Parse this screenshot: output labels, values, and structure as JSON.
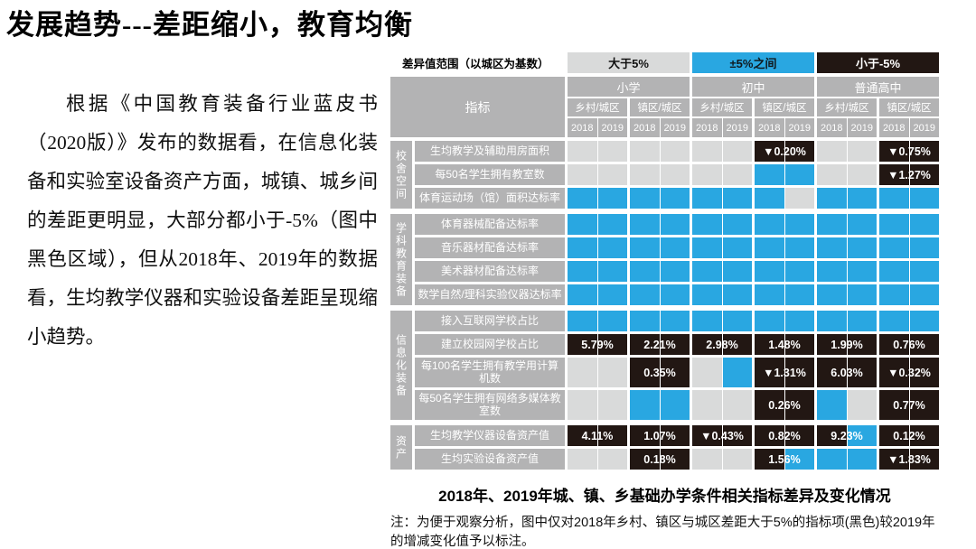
{
  "title": "发展趋势---差距缩小，教育均衡",
  "paragraph": "根据《中国教育装备行业蓝皮书（2020版）》发布的数据看，在信息化装备和实验室设备资产方面，城镇、城乡间的差距更明显，大部分都小于-5%（图中黑色区域），但从2018年、2019年的数据看，生均教学仪器和实验设备差距呈现缩小趋势。",
  "colors": {
    "G": "#d9dada",
    "B": "#29a7e1",
    "K": "#221713",
    "header_gray": "#b3b3b4",
    "label_gray": "#b3b3b4",
    "white": "#ffffff"
  },
  "legend": {
    "label": "差异值范围（以城区为基数）",
    "items": [
      {
        "key": "G",
        "label": "大于5%",
        "color": "#d9dada",
        "text_color": "#111111"
      },
      {
        "key": "B",
        "label": "±5%之间",
        "color": "#29a7e1",
        "text_color": "#10191e"
      },
      {
        "key": "K",
        "label": "小于-5%",
        "color": "#221713",
        "text_color": "#ffffff"
      }
    ]
  },
  "chart_data": {
    "type": "heatmap",
    "title": "2018年、2019年城、镇、乡基础办学条件相关指标差异及变化情况",
    "indicator_header": "指标",
    "levels": [
      "小学",
      "初中",
      "普通高中"
    ],
    "comparisons": [
      "乡村/城区",
      "镇区/城区"
    ],
    "years": [
      "2018",
      "2019"
    ],
    "value_legend": {
      "G": "大于5%",
      "B": "±5%之间",
      "K": "小于-5%"
    },
    "cell_format": "[color2018, color2019, annotation(2018黑色项较2019年增减变化值)]",
    "column_order": [
      "小学 乡村/城区",
      "小学 镇区/城区",
      "初中 乡村/城区",
      "初中 镇区/城区",
      "普通高中 乡村/城区",
      "普通高中 镇区/城区"
    ],
    "groups": [
      {
        "name": "校舍空间",
        "rows": [
          {
            "label": "生均教学及辅助用房面积",
            "tall": false,
            "cells": [
              [
                "G",
                "G",
                ""
              ],
              [
                "G",
                "G",
                ""
              ],
              [
                "G",
                "G",
                ""
              ],
              [
                "K",
                "K",
                "▼0.20%"
              ],
              [
                "G",
                "G",
                ""
              ],
              [
                "K",
                "K",
                "▼0.75%"
              ]
            ]
          },
          {
            "label": "每50名学生拥有教室数",
            "tall": false,
            "cells": [
              [
                "G",
                "G",
                ""
              ],
              [
                "G",
                "G",
                ""
              ],
              [
                "G",
                "G",
                ""
              ],
              [
                "B",
                "B",
                ""
              ],
              [
                "G",
                "G",
                ""
              ],
              [
                "K",
                "K",
                "▼1.27%"
              ]
            ]
          },
          {
            "label": "体育运动场（馆）面积达标率",
            "tall": false,
            "cells": [
              [
                "B",
                "B",
                ""
              ],
              [
                "B",
                "B",
                ""
              ],
              [
                "B",
                "B",
                ""
              ],
              [
                "B",
                "G",
                ""
              ],
              [
                "B",
                "B",
                ""
              ],
              [
                "B",
                "B",
                ""
              ]
            ]
          }
        ]
      },
      {
        "name": "学科教育装备",
        "rows": [
          {
            "label": "体育器械配备达标率",
            "tall": false,
            "cells": [
              [
                "B",
                "B",
                ""
              ],
              [
                "B",
                "B",
                ""
              ],
              [
                "B",
                "B",
                ""
              ],
              [
                "B",
                "B",
                ""
              ],
              [
                "B",
                "B",
                ""
              ],
              [
                "B",
                "B",
                ""
              ]
            ]
          },
          {
            "label": "音乐器材配备达标率",
            "tall": false,
            "cells": [
              [
                "B",
                "B",
                ""
              ],
              [
                "B",
                "B",
                ""
              ],
              [
                "B",
                "B",
                ""
              ],
              [
                "B",
                "B",
                ""
              ],
              [
                "B",
                "B",
                ""
              ],
              [
                "B",
                "B",
                ""
              ]
            ]
          },
          {
            "label": "美术器材配备达标率",
            "tall": false,
            "cells": [
              [
                "B",
                "B",
                ""
              ],
              [
                "B",
                "B",
                ""
              ],
              [
                "B",
                "B",
                ""
              ],
              [
                "B",
                "B",
                ""
              ],
              [
                "B",
                "B",
                ""
              ],
              [
                "B",
                "B",
                ""
              ]
            ]
          },
          {
            "label": "数学自然/理科实验仪器达标率",
            "tall": false,
            "cells": [
              [
                "B",
                "B",
                ""
              ],
              [
                "B",
                "B",
                ""
              ],
              [
                "B",
                "B",
                ""
              ],
              [
                "B",
                "B",
                ""
              ],
              [
                "B",
                "B",
                ""
              ],
              [
                "B",
                "B",
                ""
              ]
            ]
          }
        ]
      },
      {
        "name": "信息化装备",
        "rows": [
          {
            "label": "接入互联网学校占比",
            "tall": false,
            "cells": [
              [
                "B",
                "B",
                ""
              ],
              [
                "B",
                "B",
                ""
              ],
              [
                "B",
                "B",
                ""
              ],
              [
                "B",
                "B",
                ""
              ],
              [
                "B",
                "B",
                ""
              ],
              [
                "B",
                "B",
                ""
              ]
            ]
          },
          {
            "label": "建立校园网学校占比",
            "tall": false,
            "cells": [
              [
                "K",
                "K",
                "5.79%"
              ],
              [
                "K",
                "K",
                "2.21%"
              ],
              [
                "K",
                "K",
                "2.98%"
              ],
              [
                "K",
                "K",
                "1.48%"
              ],
              [
                "K",
                "K",
                "1.99%"
              ],
              [
                "K",
                "K",
                "0.76%"
              ]
            ]
          },
          {
            "label": "每100名学生拥有教学用计算机数",
            "tall": true,
            "cells": [
              [
                "G",
                "G",
                ""
              ],
              [
                "K",
                "K",
                "0.35%"
              ],
              [
                "G",
                "B",
                ""
              ],
              [
                "K",
                "K",
                "▼1.31%"
              ],
              [
                "K",
                "K",
                "6.03%"
              ],
              [
                "K",
                "K",
                "▼0.32%"
              ]
            ]
          },
          {
            "label": "每50名学生拥有网络多媒体教室数",
            "tall": true,
            "cells": [
              [
                "G",
                "G",
                ""
              ],
              [
                "B",
                "B",
                ""
              ],
              [
                "G",
                "G",
                ""
              ],
              [
                "K",
                "K",
                "0.26%"
              ],
              [
                "B",
                "G",
                ""
              ],
              [
                "K",
                "K",
                "0.77%"
              ]
            ]
          }
        ]
      },
      {
        "name": "资产",
        "rows": [
          {
            "label": "生均教学仪器设备资产值",
            "tall": false,
            "cells": [
              [
                "K",
                "K",
                "4.11%"
              ],
              [
                "K",
                "K",
                "1.07%"
              ],
              [
                "K",
                "K",
                "▼0.43%"
              ],
              [
                "K",
                "K",
                "0.82%"
              ],
              [
                "K",
                "B",
                "9.23%"
              ],
              [
                "K",
                "K",
                "0.12%"
              ]
            ]
          },
          {
            "label": "生均实验设备资产值",
            "tall": false,
            "cells": [
              [
                "G",
                "G",
                ""
              ],
              [
                "K",
                "K",
                "0.18%"
              ],
              [
                "G",
                "G",
                ""
              ],
              [
                "K",
                "B",
                "1.56%"
              ],
              [
                "B",
                "B",
                ""
              ],
              [
                "K",
                "K",
                "▼1.83%"
              ]
            ]
          }
        ]
      }
    ]
  },
  "caption": "2018年、2019年城、镇、乡基础办学条件相关指标差异及变化情况",
  "note": "注：为便于观察分析，图中仅对2018年乡村、镇区与城区差距大于5%的指标项(黑色)较2019年的增减变化值予以标注。"
}
